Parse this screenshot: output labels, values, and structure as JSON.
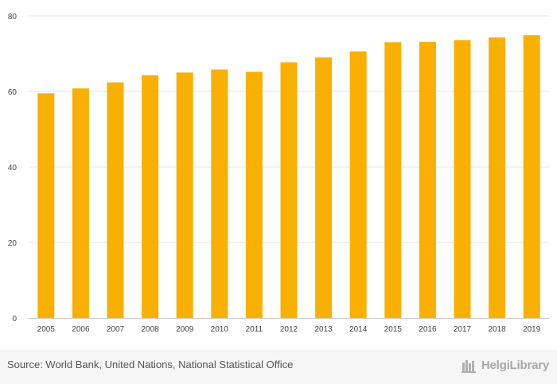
{
  "chart_data": {
    "type": "bar",
    "title": "",
    "xlabel": "",
    "ylabel": "",
    "categories": [
      "2005",
      "2006",
      "2007",
      "2008",
      "2009",
      "2010",
      "2011",
      "2012",
      "2013",
      "2014",
      "2015",
      "2016",
      "2017",
      "2018",
      "2019"
    ],
    "values": [
      59.5,
      60.8,
      62.4,
      64.3,
      65.0,
      65.8,
      65.2,
      67.7,
      69.0,
      70.6,
      73.0,
      73.1,
      73.6,
      74.3,
      74.9
    ],
    "ylim": [
      0,
      80
    ],
    "yticks": [
      "0",
      "20",
      "40",
      "60",
      "80"
    ],
    "grid": true,
    "bar_color": "#f9b000"
  },
  "footer": {
    "source": "Source: World Bank, United Nations, National Statistical Office",
    "logo_text": "HelgiLibrary"
  },
  "icons": {
    "logo": "helgi-library-logo-icon"
  },
  "colors": {
    "grid": "#e6e6e6",
    "footer_bg": "#f6f6f6"
  }
}
